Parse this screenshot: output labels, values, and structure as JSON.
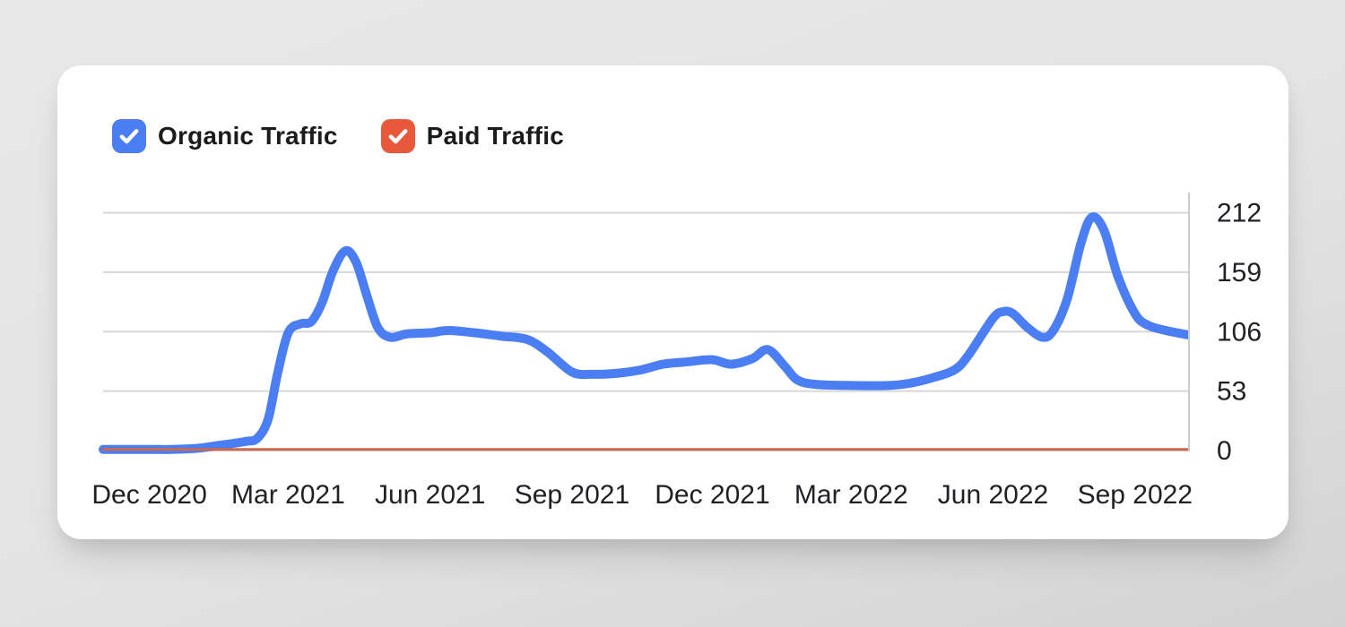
{
  "legend": {
    "items": [
      {
        "label": "Organic Traffic",
        "color": "#4a7df2",
        "checked": true
      },
      {
        "label": "Paid Traffic",
        "color": "#e8593c",
        "checked": true
      }
    ]
  },
  "chart_data": {
    "type": "line",
    "title": "",
    "grid": true,
    "legend_position": "top-left",
    "x_axis": {
      "start": "2020-11-01",
      "end": "2022-10-06",
      "ticks": [
        {
          "date": "2020-12-01",
          "label": "Dec 2020"
        },
        {
          "date": "2021-03-01",
          "label": "Mar 2021"
        },
        {
          "date": "2021-06-01",
          "label": "Jun 2021"
        },
        {
          "date": "2021-09-01",
          "label": "Sep 2021"
        },
        {
          "date": "2021-12-01",
          "label": "Dec 2021"
        },
        {
          "date": "2022-03-01",
          "label": "Mar 2022"
        },
        {
          "date": "2022-06-01",
          "label": "Jun 2022"
        },
        {
          "date": "2022-09-01",
          "label": "Sep 2022"
        }
      ]
    },
    "y_axis": {
      "min": 0,
      "max": 230,
      "ticks": [
        212,
        159,
        106,
        53,
        0
      ]
    },
    "series": [
      {
        "name": "Organic Traffic",
        "color": "#4b7ef2",
        "stroke_width": 10,
        "points": [
          [
            "2020-11-01",
            1
          ],
          [
            "2020-11-15",
            1
          ],
          [
            "2020-12-01",
            1
          ],
          [
            "2020-12-15",
            1
          ],
          [
            "2021-01-01",
            2
          ],
          [
            "2021-01-12",
            4
          ],
          [
            "2021-02-01",
            8
          ],
          [
            "2021-02-09",
            11
          ],
          [
            "2021-02-16",
            28
          ],
          [
            "2021-02-22",
            68
          ],
          [
            "2021-03-01",
            105
          ],
          [
            "2021-03-09",
            113
          ],
          [
            "2021-03-16",
            115
          ],
          [
            "2021-03-23",
            132
          ],
          [
            "2021-03-30",
            160
          ],
          [
            "2021-04-07",
            178
          ],
          [
            "2021-04-14",
            168
          ],
          [
            "2021-04-21",
            138
          ],
          [
            "2021-04-28",
            110
          ],
          [
            "2021-05-06",
            101
          ],
          [
            "2021-05-17",
            104
          ],
          [
            "2021-06-01",
            105
          ],
          [
            "2021-06-13",
            107
          ],
          [
            "2021-06-30",
            105
          ],
          [
            "2021-07-17",
            102
          ],
          [
            "2021-08-03",
            99
          ],
          [
            "2021-08-16",
            88
          ],
          [
            "2021-09-01",
            70
          ],
          [
            "2021-09-14",
            68
          ],
          [
            "2021-10-01",
            69
          ],
          [
            "2021-10-16",
            72
          ],
          [
            "2021-10-30",
            77
          ],
          [
            "2021-11-14",
            79
          ],
          [
            "2021-12-01",
            81
          ],
          [
            "2021-12-13",
            77
          ],
          [
            "2021-12-27",
            82
          ],
          [
            "2022-01-06",
            90
          ],
          [
            "2022-01-17",
            75
          ],
          [
            "2022-01-25",
            63
          ],
          [
            "2022-02-06",
            59
          ],
          [
            "2022-03-02",
            58
          ],
          [
            "2022-03-25",
            58
          ],
          [
            "2022-04-08",
            60
          ],
          [
            "2022-04-23",
            65
          ],
          [
            "2022-05-07",
            72
          ],
          [
            "2022-05-16",
            85
          ],
          [
            "2022-06-01",
            118
          ],
          [
            "2022-06-08",
            124
          ],
          [
            "2022-06-14",
            122
          ],
          [
            "2022-06-23",
            110
          ],
          [
            "2022-07-03",
            101
          ],
          [
            "2022-07-10",
            107
          ],
          [
            "2022-07-19",
            135
          ],
          [
            "2022-07-28",
            185
          ],
          [
            "2022-08-04",
            208
          ],
          [
            "2022-08-12",
            196
          ],
          [
            "2022-08-21",
            155
          ],
          [
            "2022-09-01",
            122
          ],
          [
            "2022-09-09",
            112
          ],
          [
            "2022-09-21",
            107
          ],
          [
            "2022-10-06",
            103
          ]
        ]
      },
      {
        "name": "Paid Traffic",
        "color": "#ca6950",
        "stroke_width": 3,
        "points": [
          [
            "2020-11-01",
            1
          ],
          [
            "2021-03-01",
            1
          ],
          [
            "2021-09-01",
            1
          ],
          [
            "2022-03-01",
            1
          ],
          [
            "2022-10-06",
            1
          ]
        ]
      }
    ]
  }
}
